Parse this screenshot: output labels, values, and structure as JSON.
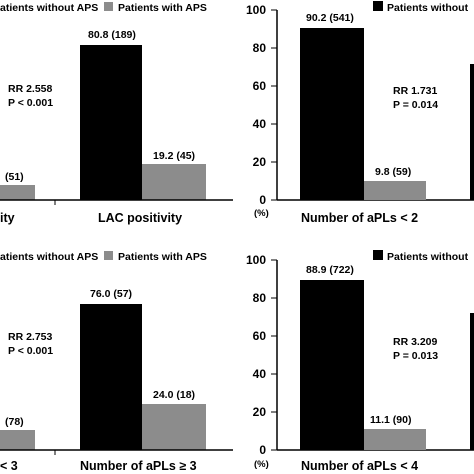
{
  "colors": {
    "without_aps": "#000000",
    "with_aps": "#8c8c8c",
    "axis": "#000000"
  },
  "chart_data": [
    {
      "type": "bar",
      "panel": "top-left",
      "legend": [
        "Patients without APS",
        "Patients with APS"
      ],
      "legend_visible": [
        "atients without APS",
        "Patients with APS"
      ],
      "legend_placement": "top",
      "categories": [
        "ity",
        "LAC positivity"
      ],
      "series": [
        {
          "name": "Patients without APS",
          "values": [
            null,
            80.8
          ],
          "labels": [
            "",
            "80.8 (189)"
          ]
        },
        {
          "name": "Patients with APS",
          "values": [
            7.1,
            19.2
          ],
          "labels": [
            "(51)",
            "19.2 (45)"
          ]
        }
      ],
      "ylim": [
        0,
        100
      ],
      "annotation": [
        "RR 2.558",
        "P < 0.001"
      ],
      "grid": false
    },
    {
      "type": "bar",
      "panel": "top-right",
      "legend": [
        "Patients without"
      ],
      "legend_placement": "top",
      "categories": [
        "Number of aPLs < 2"
      ],
      "series": [
        {
          "name": "Patients without APS",
          "values": [
            90.2
          ],
          "labels": [
            "90.2 (541)"
          ]
        },
        {
          "name": "Patients with APS",
          "values": [
            9.8
          ],
          "labels": [
            "9.8 (59)"
          ]
        }
      ],
      "ylim": [
        0,
        100
      ],
      "yticks": [
        0,
        20,
        40,
        60,
        80,
        100
      ],
      "yunit": "(%)",
      "annotation": [
        "RR 1.731",
        "P = 0.014"
      ],
      "grid": false
    },
    {
      "type": "bar",
      "panel": "bottom-left",
      "legend": [
        "atients without APS",
        "Patients with APS"
      ],
      "legend_placement": "top",
      "categories": [
        "< 3",
        "Number of aPLs ≥ 3"
      ],
      "series": [
        {
          "name": "Patients without APS",
          "values": [
            null,
            76.0
          ],
          "labels": [
            "",
            "76.0 (57)"
          ]
        },
        {
          "name": "Patients with APS",
          "values": [
            10.9,
            24.0
          ],
          "labels": [
            "(78)",
            "24.0 (18)"
          ]
        }
      ],
      "ylim": [
        0,
        100
      ],
      "annotation": [
        "RR 2.753",
        "P < 0.001"
      ],
      "grid": false
    },
    {
      "type": "bar",
      "panel": "bottom-right",
      "legend": [
        "Patients without"
      ],
      "legend_placement": "top",
      "categories": [
        "Number of aPLs < 4"
      ],
      "series": [
        {
          "name": "Patients without APS",
          "values": [
            88.9
          ],
          "labels": [
            "88.9 (722)"
          ]
        },
        {
          "name": "Patients with APS",
          "values": [
            11.1
          ],
          "labels": [
            "11.1 (90)"
          ]
        }
      ],
      "ylim": [
        0,
        100
      ],
      "yticks": [
        0,
        20,
        40,
        60,
        80,
        100
      ],
      "yunit": "(%)",
      "annotation": [
        "RR 3.209",
        "P = 0.013"
      ],
      "grid": false
    }
  ]
}
